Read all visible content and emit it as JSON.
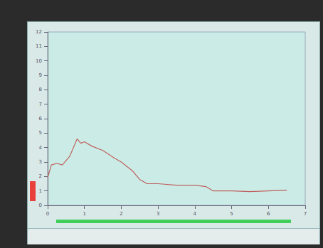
{
  "chart_data": {
    "type": "line",
    "x": [
      0.0,
      0.1,
      0.25,
      0.4,
      0.6,
      0.8,
      0.9,
      1.0,
      1.2,
      1.5,
      1.8,
      2.0,
      2.3,
      2.5,
      2.7,
      3.0,
      3.5,
      4.0,
      4.3,
      4.5,
      5.0,
      5.5,
      6.0,
      6.5
    ],
    "values": [
      1.9,
      2.8,
      2.9,
      2.8,
      3.4,
      4.6,
      4.3,
      4.4,
      4.1,
      3.8,
      3.3,
      3.0,
      2.4,
      1.8,
      1.5,
      1.5,
      1.4,
      1.4,
      1.3,
      1.0,
      1.0,
      0.95,
      1.0,
      1.05
    ],
    "color": "#c0605e",
    "xlim": [
      0,
      7
    ],
    "xticks": [
      0,
      1,
      2,
      3,
      4,
      5,
      6,
      7
    ],
    "ylim": [
      0,
      12
    ],
    "yticks": [
      0,
      1,
      2,
      3,
      4,
      5,
      6,
      7,
      8,
      9,
      10,
      11,
      12
    ],
    "grid": false
  }
}
